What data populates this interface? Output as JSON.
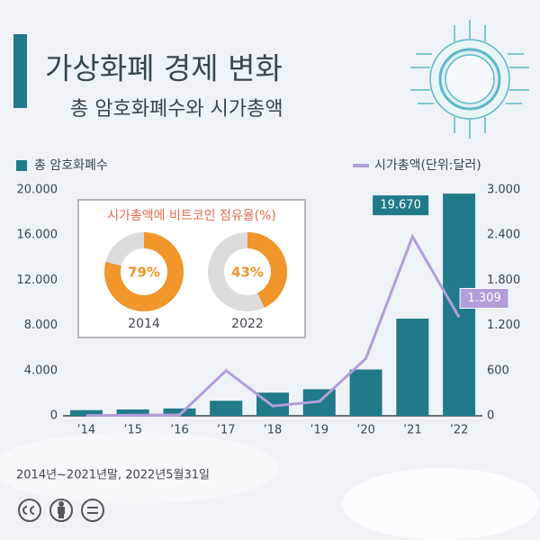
{
  "chart_data": [
    {
      "type": "bar",
      "title": "가상화폐 경제 변화",
      "subtitle": "총 암호화폐수와 시가총액",
      "note": "2014년~2021년말, 2022년5월31일",
      "categories": [
        "’14",
        "’15",
        "’16",
        "’17",
        "’18",
        "’19",
        "’20",
        "’21",
        "’22"
      ],
      "series": [
        {
          "name": "총 암호화폐수",
          "color": "#217a8a",
          "values": [
            500,
            560,
            650,
            1330,
            2050,
            2350,
            4100,
            8600,
            19670
          ],
          "value_labels": [
            null,
            null,
            null,
            null,
            null,
            null,
            null,
            null,
            "19.670"
          ]
        },
        {
          "name": "시가총액(단위:달러)",
          "type": "line",
          "axis": "y2",
          "color": "#b39ddb",
          "values": [
            5,
            7,
            12,
            600,
            130,
            190,
            760,
            2380,
            1309
          ],
          "value_labels": [
            null,
            null,
            null,
            null,
            null,
            null,
            null,
            null,
            "1.309"
          ]
        }
      ],
      "ylim": [
        0,
        20000
      ],
      "yticks": [
        0,
        {
          "value": 4000,
          "label": "4.000"
        },
        {
          "value": 8000,
          "label": "8.000"
        },
        {
          "value": 12000,
          "label": "12.000"
        },
        {
          "value": 16000,
          "label": "16.000"
        },
        {
          "value": 20000,
          "label": "20.000"
        }
      ],
      "y2lim": [
        0,
        3000
      ],
      "y2ticks": [
        0,
        600,
        {
          "value": 1200,
          "label": "1.200"
        },
        {
          "value": 1800,
          "label": "1.800"
        },
        {
          "value": 2400,
          "label": "2.400"
        },
        {
          "value": 3000,
          "label": "3.000"
        }
      ]
    },
    {
      "type": "donut",
      "title": "시가총액에 비트코인 점유율(%)",
      "categories": [
        "2014",
        "2022"
      ],
      "values": [
        79,
        43
      ],
      "value_labels": [
        "79%",
        "43%"
      ],
      "color": "#f0962a"
    }
  ]
}
